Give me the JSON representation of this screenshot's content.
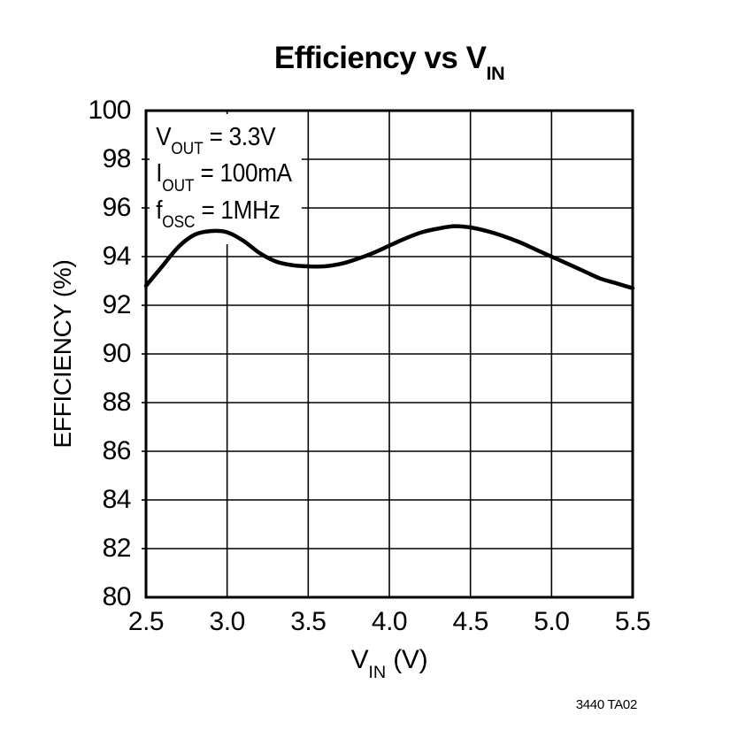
{
  "chart": {
    "title": {
      "pre": "Efficiency vs V",
      "sub": "IN"
    },
    "y_axis_title": "EFFICIENCY (%)",
    "x_axis_title": {
      "pre": "V",
      "sub": "IN",
      "post": " (V)"
    },
    "annotation": [
      {
        "pre": "V",
        "sub": "OUT",
        "post": " = 3.3V"
      },
      {
        "pre": "I",
        "sub": "OUT",
        "post": " = 100mA"
      },
      {
        "pre": "f",
        "sub": "OSC",
        "post": " = 1MHz"
      }
    ],
    "caption": "3440 TA02",
    "colors": {
      "ink": "#000000",
      "background": "#ffffff"
    }
  },
  "chart_data": {
    "type": "line",
    "title": "Efficiency vs VIN",
    "xlabel": "VIN (V)",
    "ylabel": "EFFICIENCY (%)",
    "xlim": [
      2.5,
      5.5
    ],
    "ylim": [
      80,
      100
    ],
    "grid": true,
    "legend": "none",
    "x_ticks": [
      2.5,
      3.0,
      3.5,
      4.0,
      4.5,
      5.0,
      5.5
    ],
    "x_tick_labels": [
      "2.5",
      "3.0",
      "3.5",
      "4.0",
      "4.5",
      "5.0",
      "5.5"
    ],
    "y_ticks": [
      80,
      82,
      84,
      86,
      88,
      90,
      92,
      94,
      96,
      98,
      100
    ],
    "y_tick_labels": [
      "80",
      "82",
      "84",
      "86",
      "88",
      "90",
      "92",
      "94",
      "96",
      "98",
      "100"
    ],
    "conditions": [
      "VOUT = 3.3V",
      "IOUT = 100mA",
      "fOSC = 1MHz"
    ],
    "caption": "3440 TA02",
    "line_color": "#000000",
    "series": [
      {
        "name": "efficiency",
        "x": [
          2.5,
          2.6,
          2.7,
          2.8,
          2.9,
          3.0,
          3.1,
          3.2,
          3.3,
          3.4,
          3.5,
          3.6,
          3.7,
          3.8,
          3.9,
          4.0,
          4.1,
          4.2,
          4.3,
          4.4,
          4.5,
          4.6,
          4.7,
          4.8,
          4.9,
          5.0,
          5.1,
          5.2,
          5.3,
          5.4,
          5.5
        ],
        "y": [
          92.8,
          93.6,
          94.4,
          94.9,
          95.05,
          95.0,
          94.65,
          94.15,
          93.8,
          93.65,
          93.6,
          93.6,
          93.7,
          93.9,
          94.15,
          94.45,
          94.75,
          95.0,
          95.15,
          95.25,
          95.2,
          95.05,
          94.85,
          94.6,
          94.3,
          94.0,
          93.7,
          93.4,
          93.1,
          92.9,
          92.7
        ]
      }
    ]
  }
}
